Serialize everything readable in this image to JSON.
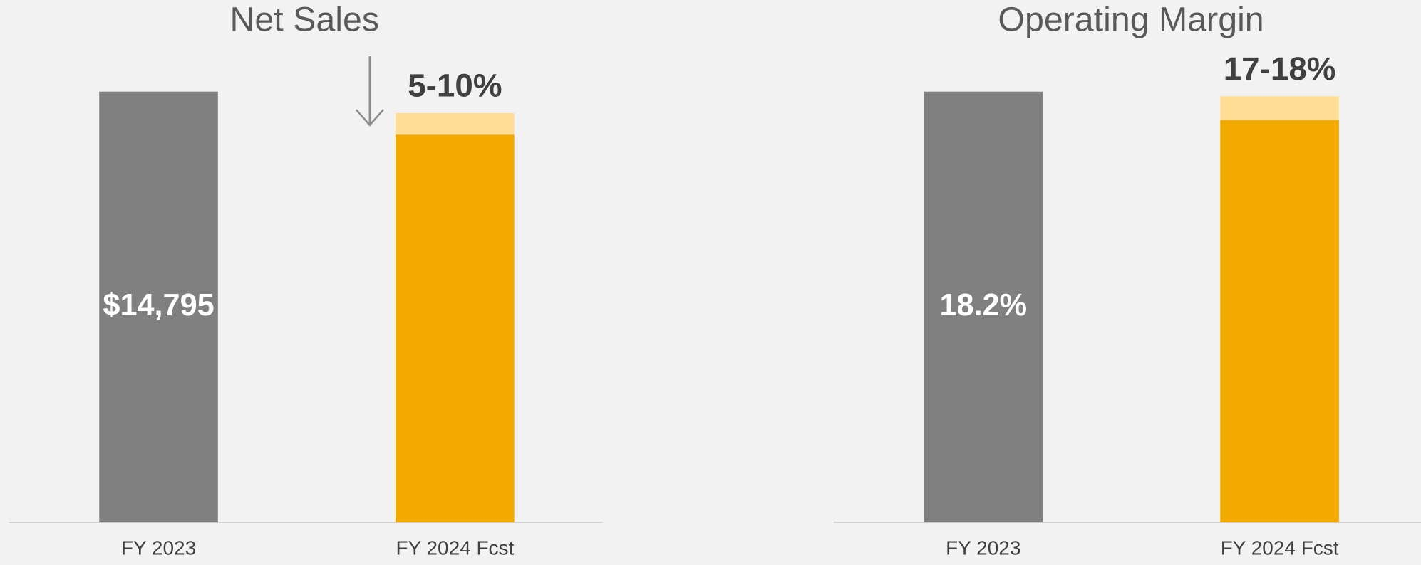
{
  "chart_data": [
    {
      "type": "bar",
      "title": "Net Sales",
      "categories": [
        "FY 2023",
        "FY 2024 Fcst"
      ],
      "series": [
        {
          "colors": [
            "#808080",
            "#f2a900"
          ],
          "values": [
            14795,
            13316
          ],
          "value_labels": [
            "$14,795",
            null
          ]
        },
        {
          "color": "#ffdd95",
          "values": [
            null,
            740
          ]
        }
      ],
      "annotation": "5-10%"
    },
    {
      "type": "bar",
      "title": "Operating Margin",
      "categories": [
        "FY 2023",
        "FY 2024 Fcst"
      ],
      "series": [
        {
          "colors": [
            "#808080",
            "#f2a900"
          ],
          "values": [
            18.2,
            17
          ],
          "value_labels": [
            "18.2%",
            null
          ]
        },
        {
          "color": "#ffdd95",
          "values": [
            null,
            1
          ]
        }
      ],
      "annotation": "17-18%"
    }
  ]
}
